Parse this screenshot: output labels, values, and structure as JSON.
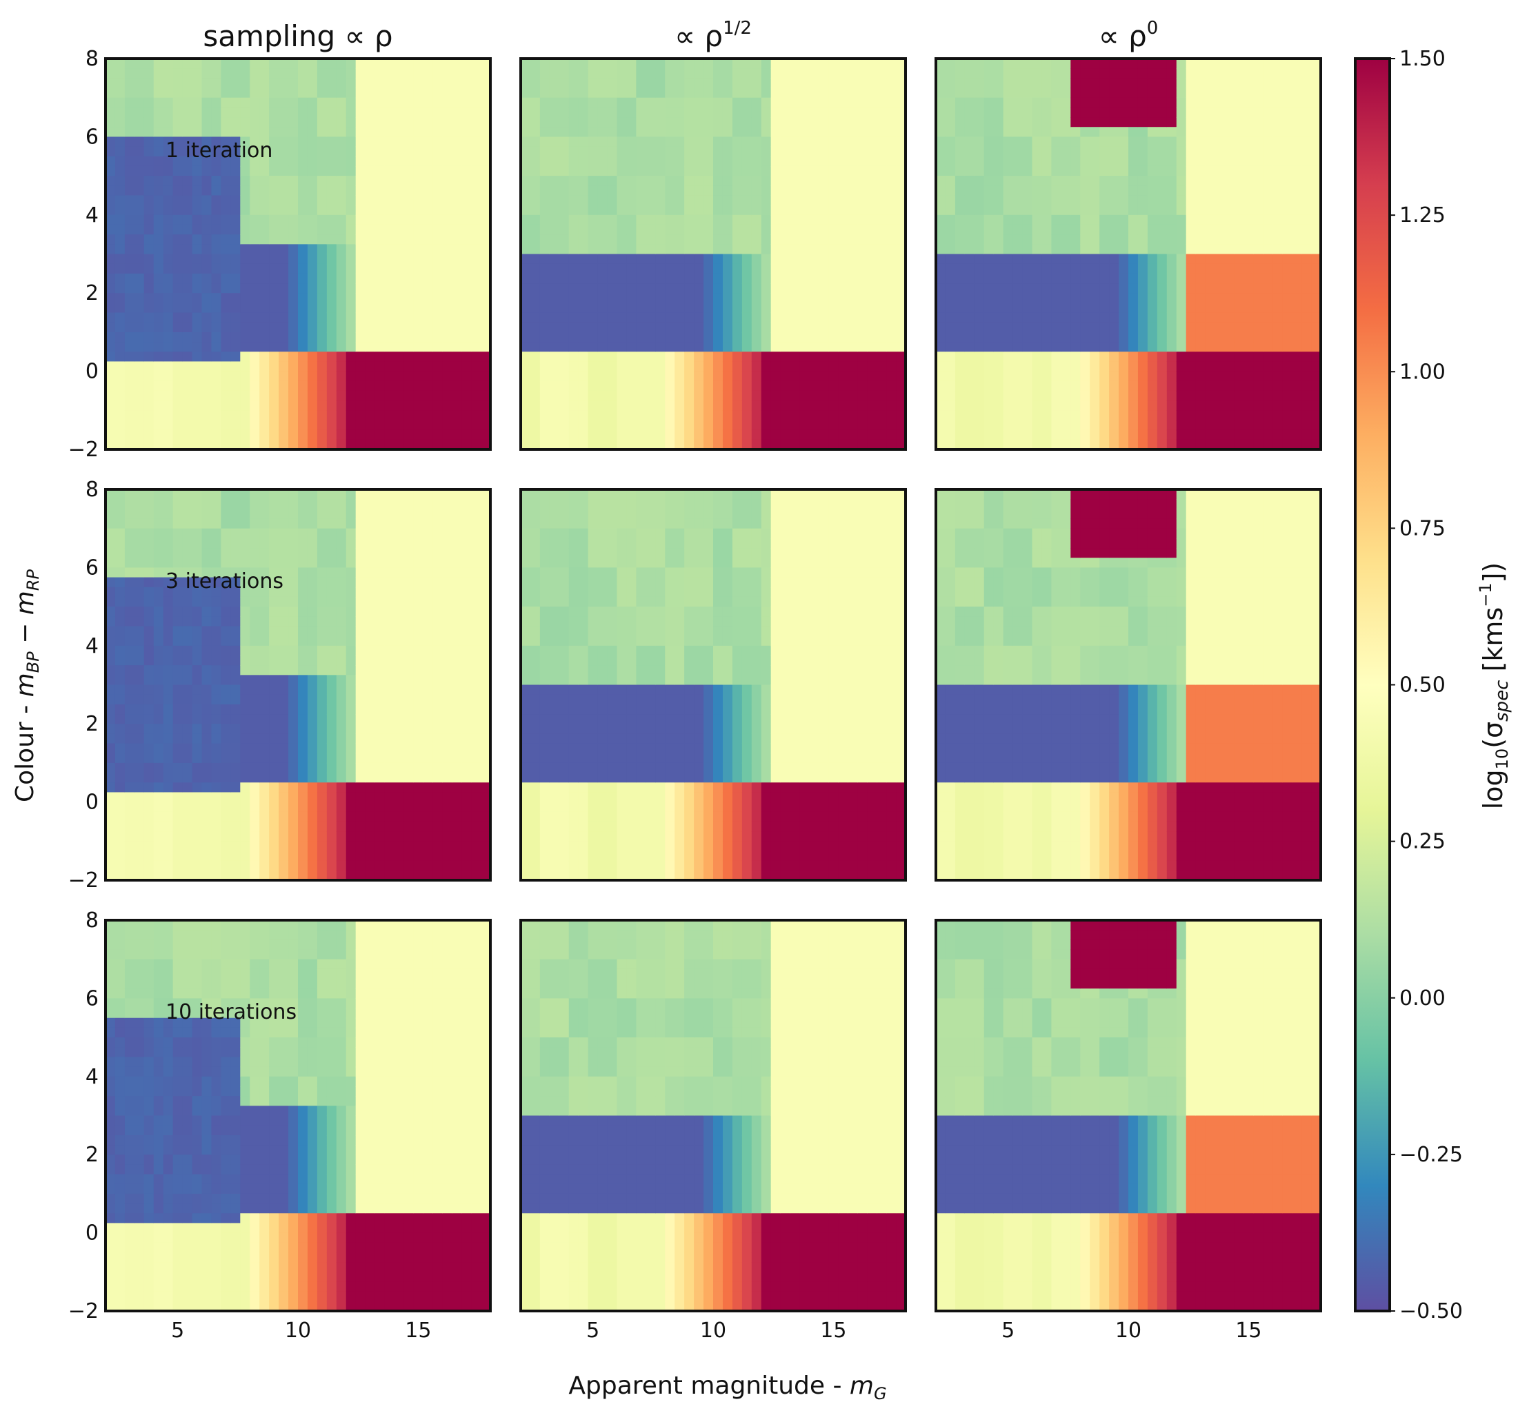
{
  "chart_data": {
    "type": "heatmap",
    "layout": {
      "rows": 3,
      "cols": 3
    },
    "column_titles": [
      {
        "text": "sampling  ∝ ρ",
        "base": "sampling  ∝ ρ",
        "sup": ""
      },
      {
        "text": "∝ ρ^(1/2)",
        "base": "∝ ρ",
        "sup": "1/2"
      },
      {
        "text": "∝ ρ^0",
        "base": "∝ ρ",
        "sup": "0"
      }
    ],
    "row_annotations": [
      "1 iteration",
      "3 iterations",
      "10 iterations"
    ],
    "xlabel": "Apparent magnitude - m_G",
    "xlabel_base": "Apparent magnitude - ",
    "xlabel_var": "m",
    "xlabel_sub": "G",
    "ylabel": "Colour - m_BP − m_RP",
    "ylabel_parts": {
      "prefix": "Colour - ",
      "v1": "m",
      "s1": "BP",
      "mid": " − ",
      "v2": "m",
      "s2": "RP"
    },
    "xlim": [
      2,
      18
    ],
    "ylim": [
      -2,
      8
    ],
    "xticks": [
      5,
      10,
      15
    ],
    "xtick_labels": [
      "5",
      "10",
      "15"
    ],
    "yticks": [
      -2,
      0,
      2,
      4,
      6,
      8
    ],
    "ytick_labels": [
      "−2",
      "0",
      "2",
      "4",
      "6",
      "8"
    ],
    "colorbar": {
      "label": "log10(σ_spec [km s^-1])",
      "label_log": "log",
      "label_log_sub": "10",
      "label_rest": "(σ",
      "label_sigma_sub": "spec",
      "label_units": " [kms",
      "label_exp": "−1",
      "label_close": "])",
      "vmin": -0.5,
      "vmax": 1.5,
      "ticks": [
        -0.5,
        -0.25,
        0.0,
        0.25,
        0.5,
        0.75,
        1.0,
        1.25,
        1.5
      ],
      "tick_labels": [
        "−0.50",
        "−0.25",
        "0.00",
        "0.25",
        "0.50",
        "0.75",
        "1.00",
        "1.25",
        "1.50"
      ],
      "colormap": "Spectral_r",
      "colormap_colors": [
        "#5e4fa2",
        "#3288bd",
        "#66c2a5",
        "#abdda4",
        "#e6f598",
        "#ffffbf",
        "#fee08b",
        "#fdae61",
        "#f46d43",
        "#d53e4f",
        "#9e0142"
      ]
    },
    "panel_summary": {
      "approximate_levels_log10_kms": {
        "bright_blue_region_upper_left": -0.45,
        "main_sequence_band_mag5_to_12_colour_1_to_3": -0.4,
        "upper_region_above_band": 0.1,
        "right_region_mag_13_18_colour_2_to_8": 0.4,
        "lower_right_faint_blue_mag_13_18_colour_below_0": 1.5
      }
    }
  }
}
